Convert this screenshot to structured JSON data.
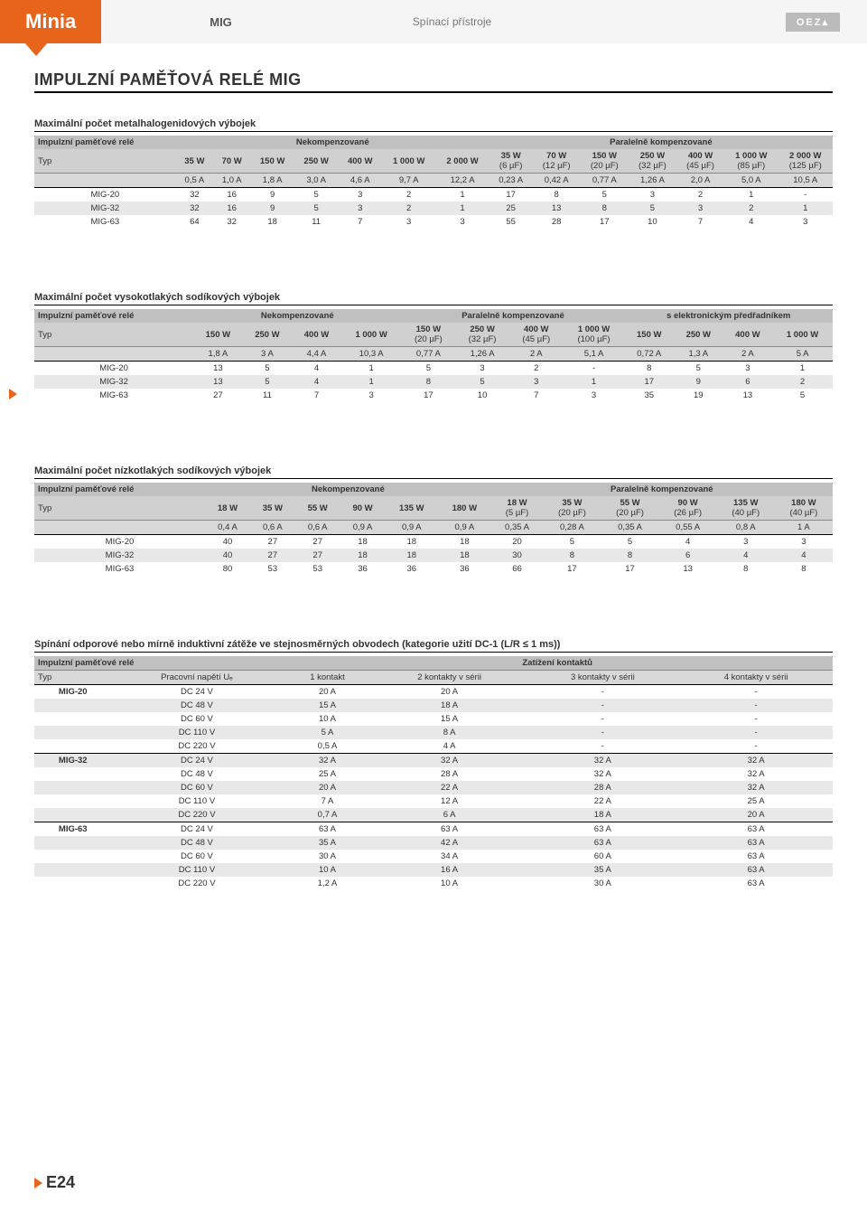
{
  "header": {
    "brand": "Minia",
    "mid": "MIG",
    "sub": "Spínací přístroje",
    "logo": "OEZ▴"
  },
  "title": "IMPULZNÍ PAMĚŤOVÁ RELÉ MIG",
  "pageNum": "E24",
  "t1": {
    "title": "Maximální počet metalhalogenidových výbojek",
    "hdr0": "Impulzní paměťové relé",
    "grp": [
      "Nekompenzované",
      "Paralelně kompenzované"
    ],
    "cols1": [
      "35 W",
      "70 W",
      "150 W",
      "250 W",
      "400 W",
      "1 000 W",
      "2 000 W"
    ],
    "cols2": [
      "35 W",
      "70 W",
      "150 W",
      "250 W",
      "400 W",
      "1 000 W",
      "2 000 W"
    ],
    "sub2": [
      "(6 µF)",
      "(12 µF)",
      "(20 µF)",
      "(32 µF)",
      "(45 µF)",
      "(85 µF)",
      "(125 µF)"
    ],
    "amps1": [
      "0,5 A",
      "1,0 A",
      "1,8 A",
      "3,0 A",
      "4,6 A",
      "9,7 A",
      "12,2 A"
    ],
    "amps2": [
      "0,23 A",
      "0,42 A",
      "0,77 A",
      "1,26 A",
      "2,0 A",
      "5,0 A",
      "10,5 A"
    ],
    "typ": "Typ",
    "rows": [
      [
        "MIG-20",
        "32",
        "16",
        "9",
        "5",
        "3",
        "2",
        "1",
        "17",
        "8",
        "5",
        "3",
        "2",
        "1",
        "-"
      ],
      [
        "MIG-32",
        "32",
        "16",
        "9",
        "5",
        "3",
        "2",
        "1",
        "25",
        "13",
        "8",
        "5",
        "3",
        "2",
        "1"
      ],
      [
        "MIG-63",
        "64",
        "32",
        "18",
        "11",
        "7",
        "3",
        "3",
        "55",
        "28",
        "17",
        "10",
        "7",
        "4",
        "3"
      ]
    ]
  },
  "t2": {
    "title": "Maximální počet vysokotlakých sodíkových výbojek",
    "hdr0": "Impulzní paměťové relé",
    "grp": [
      "Nekompenzované",
      "Paralelně kompenzované",
      "s elektronickým předřadníkem"
    ],
    "cols1": [
      "150 W",
      "250 W",
      "400 W",
      "1 000 W"
    ],
    "cols2": [
      "150 W",
      "250 W",
      "400 W",
      "1 000 W"
    ],
    "sub2": [
      "(20 µF)",
      "(32 µF)",
      "(45 µF)",
      "(100 µF)"
    ],
    "cols3": [
      "150 W",
      "250 W",
      "400 W",
      "1 000 W"
    ],
    "amps1": [
      "1,8 A",
      "3 A",
      "4,4 A",
      "10,3 A"
    ],
    "amps2": [
      "0,77 A",
      "1,26 A",
      "2 A",
      "5,1 A"
    ],
    "amps3": [
      "0,72 A",
      "1,3 A",
      "2 A",
      "5 A"
    ],
    "typ": "Typ",
    "rows": [
      [
        "MIG-20",
        "13",
        "5",
        "4",
        "1",
        "5",
        "3",
        "2",
        "-",
        "8",
        "5",
        "3",
        "1"
      ],
      [
        "MIG-32",
        "13",
        "5",
        "4",
        "1",
        "8",
        "5",
        "3",
        "1",
        "17",
        "9",
        "6",
        "2"
      ],
      [
        "MIG-63",
        "27",
        "11",
        "7",
        "3",
        "17",
        "10",
        "7",
        "3",
        "35",
        "19",
        "13",
        "5"
      ]
    ]
  },
  "t3": {
    "title": "Maximální počet nízkotlakých sodíkových výbojek",
    "hdr0": "Impulzní paměťové relé",
    "grp": [
      "Nekompenzované",
      "Paralelně kompenzované"
    ],
    "cols1": [
      "18 W",
      "35 W",
      "55 W",
      "90 W",
      "135 W",
      "180 W"
    ],
    "cols2": [
      "18 W",
      "35 W",
      "55 W",
      "90 W",
      "135 W",
      "180 W"
    ],
    "sub2": [
      "(5 µF)",
      "(20 µF)",
      "(20 µF)",
      "(26 µF)",
      "(40 µF)",
      "(40 µF)"
    ],
    "amps1": [
      "0,4 A",
      "0,6 A",
      "0,6 A",
      "0,9 A",
      "0,9 A",
      "0,9 A"
    ],
    "amps2": [
      "0,35 A",
      "0,28 A",
      "0,35 A",
      "0,55 A",
      "0,8 A",
      "1 A"
    ],
    "typ": "Typ",
    "rows": [
      [
        "MIG-20",
        "40",
        "27",
        "27",
        "18",
        "18",
        "18",
        "20",
        "5",
        "5",
        "4",
        "3",
        "3"
      ],
      [
        "MIG-32",
        "40",
        "27",
        "27",
        "18",
        "18",
        "18",
        "30",
        "8",
        "8",
        "6",
        "4",
        "4"
      ],
      [
        "MIG-63",
        "80",
        "53",
        "53",
        "36",
        "36",
        "36",
        "66",
        "17",
        "17",
        "13",
        "8",
        "8"
      ]
    ]
  },
  "t4": {
    "title": "Spínání odporové nebo mírně induktivní zátěže ve stejnosměrných obvodech (kategorie užití DC-1 (L/R ≤ 1 ms))",
    "hdr0": "Impulzní paměťové relé",
    "grpHdr": "Zatížení kontaktů",
    "typ": "Typ",
    "volt": "Pracovní napětí Uₑ",
    "cols": [
      "1 kontakt",
      "2 kontakty v sérii",
      "3 kontakty v sérii",
      "4 kontakty v sérii"
    ],
    "rows": [
      [
        "MIG-20",
        "DC 24 V",
        "20 A",
        "20 A",
        "-",
        "-"
      ],
      [
        "",
        "DC 48 V",
        "15 A",
        "18 A",
        "-",
        "-"
      ],
      [
        "",
        "DC 60 V",
        "10 A",
        "15 A",
        "-",
        "-"
      ],
      [
        "",
        "DC 110 V",
        "5 A",
        "8 A",
        "-",
        "-"
      ],
      [
        "",
        "DC 220 V",
        "0,5 A",
        "4 A",
        "-",
        "-"
      ],
      [
        "MIG-32",
        "DC 24 V",
        "32 A",
        "32 A",
        "32 A",
        "32 A"
      ],
      [
        "",
        "DC 48 V",
        "25 A",
        "28 A",
        "32 A",
        "32 A"
      ],
      [
        "",
        "DC 60 V",
        "20 A",
        "22 A",
        "28 A",
        "32 A"
      ],
      [
        "",
        "DC 110 V",
        "7 A",
        "12 A",
        "22 A",
        "25 A"
      ],
      [
        "",
        "DC 220 V",
        "0,7 A",
        "6 A",
        "18 A",
        "20 A"
      ],
      [
        "MIG-63",
        "DC 24 V",
        "63 A",
        "63 A",
        "63 A",
        "63 A"
      ],
      [
        "",
        "DC 48 V",
        "35 A",
        "42 A",
        "63 A",
        "63 A"
      ],
      [
        "",
        "DC 60 V",
        "30 A",
        "34 A",
        "60 A",
        "63 A"
      ],
      [
        "",
        "DC 110 V",
        "10 A",
        "16 A",
        "35 A",
        "63 A"
      ],
      [
        "",
        "DC 220 V",
        "1,2 A",
        "10 A",
        "30 A",
        "63 A"
      ]
    ],
    "borders": [
      4,
      9
    ]
  }
}
